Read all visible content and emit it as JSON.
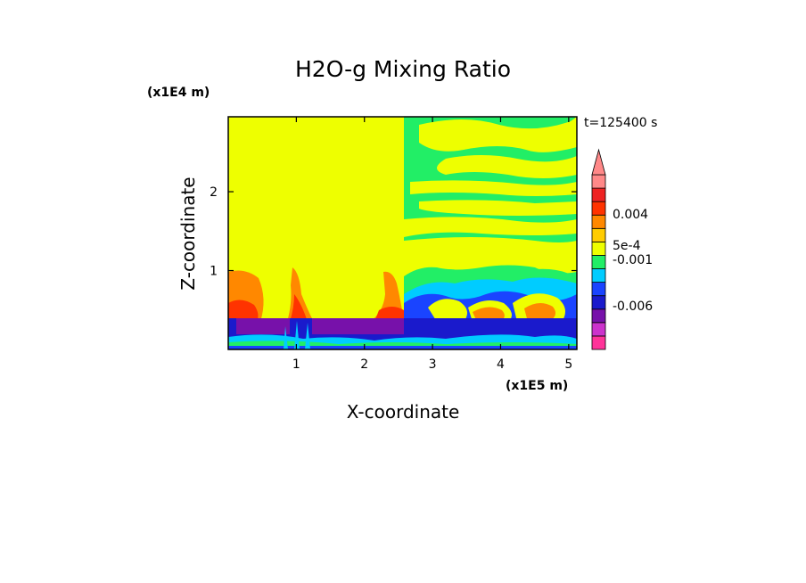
{
  "chart_data": {
    "type": "heatmap",
    "title": "H2O-g Mixing Ratio",
    "xlabel": "X-coordinate",
    "ylabel": "Z-coordinate",
    "x_scale_label": "(x1E5 m)",
    "y_scale_label": "(x1E4 m)",
    "time_label": "t=125400 s",
    "x_range": [
      0,
      5.12
    ],
    "y_range": [
      0,
      2.95
    ],
    "x_ticks": [
      "1",
      "2",
      "3",
      "4",
      "5"
    ],
    "y_ticks": [
      "1",
      "2"
    ],
    "colorbar": {
      "labels": [
        "0.004",
        "5e-4",
        "-0.001",
        "-0.006"
      ],
      "levels": [
        {
          "color": "#ff3399"
        },
        {
          "color": "#cc33cc"
        },
        {
          "color": "#7711aa"
        },
        {
          "color": "#1a1acc"
        },
        {
          "color": "#1a44ff"
        },
        {
          "color": "#00ccff"
        },
        {
          "color": "#22ee66"
        },
        {
          "color": "#eeff00"
        },
        {
          "color": "#ffcc00"
        },
        {
          "color": "#ff8800"
        },
        {
          "color": "#ff3300"
        },
        {
          "color": "#ee2222"
        },
        {
          "color": "#ff8888"
        }
      ],
      "extend_top_color": "#ff8888"
    },
    "regions_described": [
      {
        "name": "upper-left domain (x < 2.6)",
        "dominant": "#eeff00"
      },
      {
        "name": "upper-right domain (x > 2.6)",
        "dominant": "mix of #22ee66 and #eeff00"
      },
      {
        "name": "lower layer (z < 0.45)",
        "dominant": "#1a1acc / #7711aa with #00ccff, #22ee66"
      },
      {
        "name": "orange/red plumes near x=0-0.4, 1.0, 2.1-2.5, 3.5-4.9",
        "dominant": "#ff8800 / #ff3300"
      }
    ]
  }
}
